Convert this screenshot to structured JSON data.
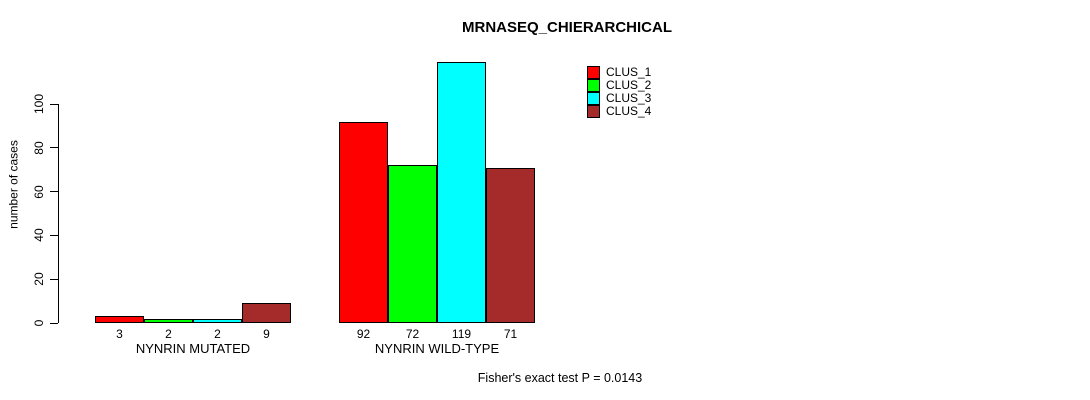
{
  "title": "MRNASEQ_CHIERARCHICAL",
  "y_axis": {
    "label": "number of cases",
    "ticks": [
      0,
      20,
      40,
      60,
      80,
      100
    ]
  },
  "footnote": "Fisher's exact test P = 0.0143",
  "legend": {
    "items": [
      {
        "label": "CLUS_1",
        "color": "#FF0000"
      },
      {
        "label": "CLUS_2",
        "color": "#00FF00"
      },
      {
        "label": "CLUS_3",
        "color": "#00FFFF"
      },
      {
        "label": "CLUS_4",
        "color": "#A52A2A"
      }
    ]
  },
  "chart_data": {
    "type": "bar",
    "title": "MRNASEQ_CHIERARCHICAL",
    "ylabel": "number of cases",
    "ylim": [
      0,
      100
    ],
    "yticks": [
      0,
      20,
      40,
      60,
      80,
      100
    ],
    "grid": false,
    "legend_position": "top-right",
    "series_names": [
      "CLUS_1",
      "CLUS_2",
      "CLUS_3",
      "CLUS_4"
    ],
    "series_colors": [
      "#FF0000",
      "#00FF00",
      "#00FFFF",
      "#A52A2A"
    ],
    "groups": [
      {
        "label": "NYNRIN MUTATED",
        "values": [
          3,
          2,
          2,
          9
        ]
      },
      {
        "label": "NYNRIN WILD-TYPE",
        "values": [
          92,
          72,
          119,
          71
        ]
      }
    ],
    "bar_value_labels_shown": true,
    "annotation": "Fisher's exact test P = 0.0143"
  }
}
